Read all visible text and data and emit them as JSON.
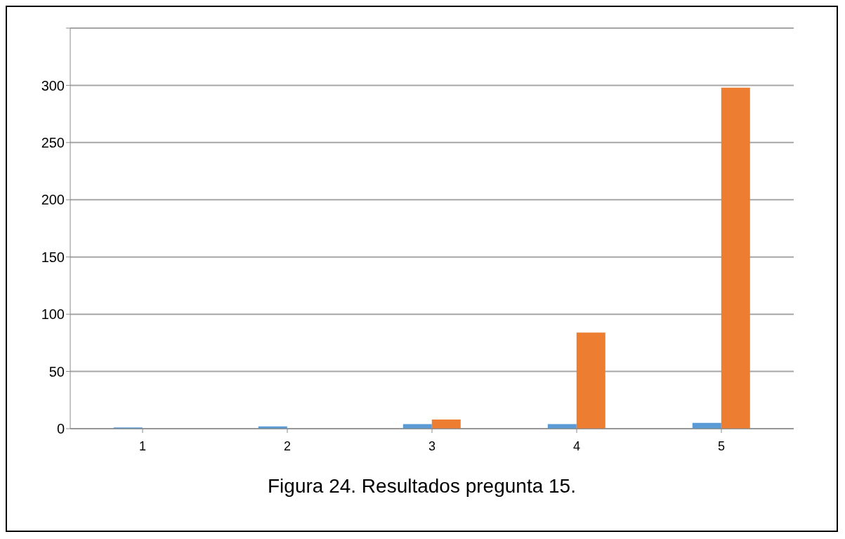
{
  "chart_data": {
    "type": "bar",
    "title": "Figura 24. Resultados pregunta 15.",
    "categories": [
      "1",
      "2",
      "3",
      "4",
      "5"
    ],
    "series": [
      {
        "color": "#5b9bd5",
        "values": [
          1,
          2,
          4,
          4,
          5
        ]
      },
      {
        "color": "#ed7d31",
        "values": [
          0,
          0,
          8,
          84,
          298
        ]
      }
    ],
    "ylim": [
      0,
      350
    ],
    "yticks": [
      0,
      50,
      100,
      150,
      200,
      250,
      300,
      {
        "value": 350,
        "label": null
      }
    ],
    "grid": "y",
    "legend": false
  }
}
